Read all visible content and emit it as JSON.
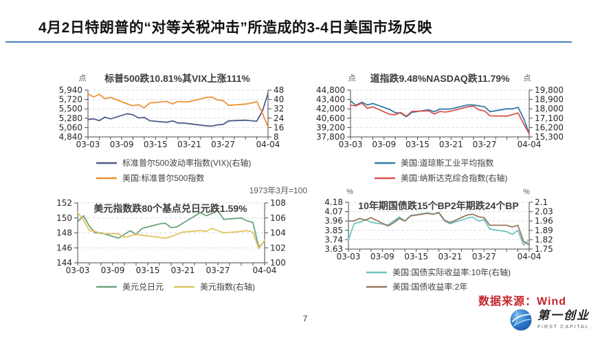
{
  "slide": {
    "title": "4月2日特朗普的“对等关税冲击”所造成的3-4日美国市场反映",
    "page_number": "7",
    "source_note": "数据来源：Wind",
    "logo_cn": "第一创业",
    "logo_en": "FIRST CAPITAL",
    "accent_color": "#4a7ebb",
    "source_note_color": "#c2262c"
  },
  "chart_data": [
    {
      "type": "line",
      "title": "标普500跌10.81%其VIX上涨111%",
      "unit_left": "点",
      "unit_right": "",
      "note": "",
      "x_tick_labels": [
        "03-03",
        "03-09",
        "03-15",
        "03-21",
        "03-27",
        "04-04"
      ],
      "x_tick_days": [
        0,
        6,
        12,
        18,
        24,
        32
      ],
      "x_span": 32,
      "days": [
        0,
        1,
        2,
        3,
        4,
        7,
        8,
        9,
        10,
        11,
        14,
        15,
        16,
        17,
        18,
        21,
        22,
        23,
        24,
        25,
        28,
        29,
        30,
        31,
        32
      ],
      "left_axis": {
        "ticks": [
          "4,840",
          "5,060",
          "5,280",
          "5,500",
          "5,720",
          "5,940"
        ],
        "range": [
          4840,
          5940
        ]
      },
      "right_axis": {
        "ticks": [
          "8",
          "16",
          "24",
          "32",
          "40",
          "48"
        ],
        "range": [
          8,
          48
        ]
      },
      "series": [
        {
          "name": "标准普尔500波动率指数(VIX)(右轴)",
          "color": "#4e5a87",
          "axis": "right",
          "values": [
            22.8,
            23.5,
            21.9,
            24.9,
            23.4,
            27.9,
            26.9,
            24.2,
            24.7,
            21.8,
            20.5,
            21.7,
            19.9,
            19.8,
            19.3,
            17.5,
            17.2,
            18.3,
            18.7,
            21.7,
            22.3,
            21.8,
            21.5,
            30.0,
            45.3
          ]
        },
        {
          "name": "美国:标准普尔500指数",
          "color": "#ec9233",
          "axis": "left",
          "values": [
            5849.7,
            5778.2,
            5842.6,
            5738.5,
            5770.2,
            5614.6,
            5572.1,
            5599.3,
            5521.5,
            5638.9,
            5675.1,
            5614.7,
            5675.3,
            5662.9,
            5667.6,
            5767.6,
            5776.7,
            5712.2,
            5693.3,
            5580.9,
            5611.9,
            5633.1,
            5671.0,
            5396.5,
            5074.1
          ]
        }
      ]
    },
    {
      "type": "line",
      "title": "道指跌9.48%NASDAQ跌11.79%",
      "unit_left": "点",
      "unit_right": "点",
      "note": "",
      "x_tick_labels": [
        "03-03",
        "03-09",
        "03-15",
        "03-21",
        "03-27",
        "04-04"
      ],
      "x_tick_days": [
        0,
        6,
        12,
        18,
        24,
        32
      ],
      "x_span": 32,
      "days": [
        0,
        1,
        2,
        3,
        4,
        7,
        8,
        9,
        10,
        11,
        14,
        15,
        16,
        17,
        18,
        21,
        22,
        23,
        24,
        25,
        28,
        29,
        30,
        31,
        32
      ],
      "left_axis": {
        "ticks": [
          "37,800",
          "39,200",
          "40,600",
          "42,000",
          "43,400",
          "44,800"
        ],
        "range": [
          37800,
          44800
        ]
      },
      "right_axis": {
        "ticks": [
          "15,300",
          "16,200",
          "17,100",
          "18,000",
          "18,900",
          "19,800"
        ],
        "range": [
          15300,
          19800
        ]
      },
      "series": [
        {
          "name": "美国:道琼斯工业平均指数",
          "color": "#2f7ca6",
          "axis": "left",
          "values": [
            43191,
            42521,
            43006,
            42579,
            42802,
            41912,
            41433,
            41351,
            40814,
            41488,
            41841,
            41581,
            41964,
            41953,
            41985,
            42583,
            42587,
            42455,
            42299,
            41583,
            42001,
            41989,
            42225,
            40546,
            38315
          ]
        },
        {
          "name": "美国:纳斯达克综合指数(右轴)",
          "color": "#d9534f",
          "axis": "right",
          "values": [
            18350,
            18285,
            18553,
            18069,
            18196,
            17468,
            17436,
            17648,
            17303,
            17754,
            17808,
            17504,
            17750,
            17691,
            17784,
            18189,
            18272,
            17899,
            17804,
            17323,
            17299,
            17449,
            17601,
            16551,
            15588
          ]
        }
      ]
    },
    {
      "type": "line",
      "title": "美元指数跌80个基点兑日元跌1.59%",
      "unit_left": "",
      "unit_right": "",
      "note": "1973年3月=100",
      "x_tick_labels": [
        "03-03",
        "03-09",
        "03-15",
        "03-21",
        "03-27",
        "04-04"
      ],
      "x_tick_days": [
        0,
        6,
        12,
        18,
        24,
        32
      ],
      "x_span": 32,
      "days": [
        0,
        1,
        2,
        3,
        4,
        7,
        8,
        9,
        10,
        11,
        14,
        15,
        16,
        17,
        18,
        21,
        22,
        23,
        24,
        25,
        28,
        29,
        30,
        31,
        32
      ],
      "left_axis": {
        "ticks": [
          "144",
          "146",
          "148",
          "150",
          "152"
        ],
        "range": [
          144,
          152
        ]
      },
      "right_axis": {
        "ticks": [
          "100",
          "102",
          "104",
          "106",
          "108"
        ],
        "range": [
          100,
          108
        ]
      },
      "series": [
        {
          "name": "美元兑日元",
          "color": "#69a27b",
          "axis": "left",
          "values": [
            149.5,
            150.3,
            148.9,
            148.0,
            148.0,
            147.3,
            147.8,
            148.3,
            147.8,
            148.6,
            149.2,
            149.3,
            148.7,
            148.8,
            149.3,
            150.7,
            150.3,
            150.6,
            151.0,
            149.8,
            150.0,
            149.6,
            149.4,
            146.1,
            146.9
          ]
        },
        {
          "name": "美元指数(右轴)",
          "color": "#dfc35c",
          "axis": "right",
          "values": [
            106.7,
            105.7,
            104.3,
            104.2,
            103.9,
            103.9,
            103.4,
            103.6,
            103.8,
            103.7,
            103.4,
            103.3,
            103.5,
            103.8,
            104.1,
            104.3,
            104.2,
            104.6,
            104.3,
            104.0,
            104.2,
            104.3,
            104.1,
            101.9,
            103.0
          ]
        }
      ]
    },
    {
      "type": "line",
      "title": "10年期国债跌15个BP2年期跌24个BP",
      "unit_left": "%",
      "unit_right": "%",
      "note": "",
      "x_tick_labels": [
        "03-03",
        "03-09",
        "03-15",
        "03-21",
        "03-27",
        "04-04"
      ],
      "x_tick_days": [
        0,
        6,
        12,
        18,
        24,
        32
      ],
      "x_span": 32,
      "days": [
        0,
        1,
        2,
        3,
        4,
        7,
        8,
        9,
        10,
        11,
        14,
        15,
        16,
        17,
        18,
        21,
        22,
        23,
        24,
        25,
        28,
        29,
        30,
        31,
        32
      ],
      "left_axis": {
        "ticks": [
          "3.63",
          "3.74",
          "3.85",
          "3.96",
          "4.07",
          "4.18"
        ],
        "range": [
          3.63,
          4.18
        ]
      },
      "right_axis": {
        "ticks": [
          "1.75",
          "1.82",
          "1.89",
          "1.96",
          "2.03",
          "2.1"
        ],
        "range": [
          1.75,
          2.1
        ]
      },
      "series": [
        {
          "name": "美国:国债实际收益率:10年(右轴)",
          "color": "#6cc5c3",
          "axis": "right",
          "values": [
            1.82,
            1.94,
            1.95,
            1.97,
            1.95,
            1.93,
            1.96,
            1.99,
            1.96,
            2.0,
            2.02,
            2.01,
            2.02,
            1.96,
            1.94,
            1.98,
            1.99,
            1.96,
            1.97,
            1.9,
            1.88,
            1.86,
            1.89,
            1.78,
            1.82
          ]
        },
        {
          "name": "美国:国债收益率:2年",
          "color": "#97795f",
          "axis": "left",
          "values": [
            3.96,
            3.96,
            3.99,
            3.97,
            4.0,
            3.9,
            3.94,
            3.99,
            3.96,
            4.02,
            4.05,
            4.04,
            4.06,
            3.97,
            3.94,
            4.03,
            4.04,
            4.01,
            4.0,
            3.91,
            3.91,
            3.89,
            3.91,
            3.72,
            3.68
          ]
        }
      ]
    }
  ]
}
